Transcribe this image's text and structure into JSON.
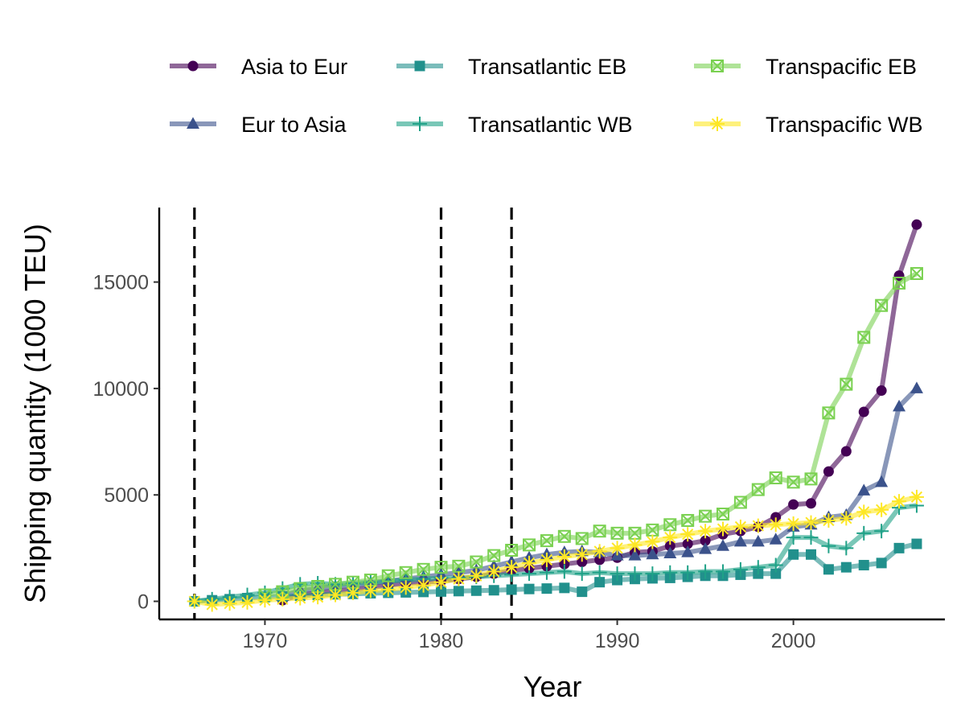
{
  "chart_data": {
    "type": "line",
    "title": "",
    "xlabel": "Year",
    "ylabel": "Shipping quantity (1000 TEU)",
    "xlim": [
      1964,
      2008.6
    ],
    "ylim": [
      -850,
      18500
    ],
    "xticks": [
      1970,
      1980,
      1990,
      2000
    ],
    "yticks": [
      0,
      5000,
      10000,
      15000
    ],
    "xtick_labels": [
      "1970",
      "1980",
      "1990",
      "2000"
    ],
    "ytick_labels": [
      "0",
      "5000",
      "10000",
      "15000"
    ],
    "vlines": [
      1966,
      1980,
      1984
    ],
    "grid": false,
    "legend_position": "top",
    "series": [
      {
        "name": "Asia to Eur",
        "color": "#440154",
        "marker": "circle",
        "x": [
          1971,
          1972,
          1973,
          1974,
          1975,
          1976,
          1977,
          1978,
          1979,
          1980,
          1981,
          1982,
          1983,
          1984,
          1985,
          1986,
          1987,
          1988,
          1989,
          1990,
          1991,
          1992,
          1993,
          1994,
          1995,
          1996,
          1997,
          1998,
          1999,
          2000,
          2001,
          2002,
          2003,
          2004,
          2005,
          2006,
          2007
        ],
        "values": [
          50,
          300,
          400,
          500,
          550,
          650,
          750,
          850,
          900,
          950,
          1050,
          1150,
          1300,
          1450,
          1550,
          1650,
          1750,
          1850,
          1950,
          2050,
          2300,
          2350,
          2600,
          2700,
          2850,
          3150,
          3300,
          3500,
          3950,
          4550,
          4600,
          6100,
          7050,
          8900,
          9900,
          15300,
          17700
        ]
      },
      {
        "name": "Eur to Asia",
        "color": "#3b528b",
        "marker": "triangle",
        "x": [
          1971,
          1972,
          1973,
          1974,
          1975,
          1976,
          1977,
          1978,
          1979,
          1980,
          1981,
          1982,
          1983,
          1984,
          1985,
          1986,
          1987,
          1988,
          1989,
          1990,
          1991,
          1992,
          1993,
          1994,
          1995,
          1996,
          1997,
          1998,
          1999,
          2000,
          2001,
          2002,
          2003,
          2004,
          2005,
          2006,
          2007
        ],
        "values": [
          250,
          500,
          600,
          700,
          750,
          850,
          950,
          1050,
          1150,
          1250,
          1350,
          1450,
          1650,
          1850,
          2050,
          2200,
          2300,
          2350,
          2300,
          2150,
          2150,
          2200,
          2250,
          2300,
          2450,
          2600,
          2800,
          2800,
          2900,
          3500,
          3600,
          3950,
          4050,
          5200,
          5600,
          9150,
          10000
        ]
      },
      {
        "name": "Transatlantic EB",
        "color": "#21908c",
        "marker": "square",
        "x": [
          1966,
          1967,
          1968,
          1969,
          1970,
          1971,
          1972,
          1973,
          1974,
          1975,
          1976,
          1977,
          1978,
          1979,
          1980,
          1981,
          1982,
          1983,
          1984,
          1985,
          1986,
          1987,
          1988,
          1989,
          1990,
          1991,
          1992,
          1993,
          1994,
          1995,
          1996,
          1997,
          1998,
          1999,
          2000,
          2001,
          2002,
          2003,
          2004,
          2005,
          2006,
          2007
        ],
        "values": [
          0,
          50,
          100,
          150,
          200,
          230,
          260,
          300,
          330,
          350,
          380,
          400,
          420,
          440,
          460,
          480,
          500,
          520,
          550,
          580,
          600,
          630,
          450,
          900,
          1000,
          1050,
          1080,
          1100,
          1150,
          1200,
          1200,
          1250,
          1300,
          1300,
          2200,
          2200,
          1500,
          1600,
          1700,
          1800,
          2500,
          2700
        ]
      },
      {
        "name": "Transatlantic WB",
        "color": "#1fa187",
        "marker": "plus",
        "x": [
          1966,
          1967,
          1968,
          1969,
          1970,
          1971,
          1972,
          1973,
          1974,
          1975,
          1976,
          1977,
          1978,
          1979,
          1980,
          1981,
          1982,
          1983,
          1984,
          1985,
          1986,
          1987,
          1988,
          1989,
          1990,
          1991,
          1992,
          1993,
          1994,
          1995,
          1996,
          1997,
          1998,
          1999,
          2000,
          2001,
          2002,
          2003,
          2004,
          2005,
          2006,
          2007
        ],
        "values": [
          0,
          100,
          200,
          300,
          400,
          600,
          800,
          850,
          800,
          850,
          900,
          950,
          1000,
          1050,
          1100,
          1100,
          1150,
          1200,
          1250,
          1300,
          1350,
          1400,
          1300,
          1350,
          1300,
          1300,
          1300,
          1350,
          1350,
          1400,
          1400,
          1500,
          1600,
          1700,
          3000,
          3000,
          2600,
          2500,
          3200,
          3300,
          4400,
          4500
        ]
      },
      {
        "name": "Transpacific EB",
        "color": "#7ad151",
        "marker": "square-x",
        "x": [
          1970,
          1971,
          1972,
          1973,
          1974,
          1975,
          1976,
          1977,
          1978,
          1979,
          1980,
          1981,
          1982,
          1983,
          1984,
          1985,
          1986,
          1987,
          1988,
          1989,
          1990,
          1991,
          1992,
          1993,
          1994,
          1995,
          1996,
          1997,
          1998,
          1999,
          2000,
          2001,
          2002,
          2003,
          2004,
          2005,
          2006,
          2007
        ],
        "values": [
          300,
          450,
          600,
          700,
          800,
          900,
          1000,
          1200,
          1350,
          1500,
          1600,
          1650,
          1850,
          2150,
          2400,
          2650,
          2850,
          3050,
          2950,
          3300,
          3200,
          3200,
          3350,
          3600,
          3800,
          4000,
          4100,
          4650,
          5250,
          5800,
          5600,
          5750,
          8850,
          10200,
          12400,
          13900,
          14950,
          15400
        ]
      },
      {
        "name": "Transpacific WB",
        "color": "#fde725",
        "marker": "asterisk",
        "x": [
          1966,
          1967,
          1968,
          1969,
          1970,
          1971,
          1972,
          1973,
          1974,
          1975,
          1976,
          1977,
          1978,
          1979,
          1980,
          1981,
          1982,
          1983,
          1984,
          1985,
          1986,
          1987,
          1988,
          1989,
          1990,
          1991,
          1992,
          1993,
          1994,
          1995,
          1996,
          1997,
          1998,
          1999,
          2000,
          2001,
          2002,
          2003,
          2004,
          2005,
          2006,
          2007
        ],
        "values": [
          0,
          -150,
          -100,
          -50,
          50,
          100,
          150,
          200,
          300,
          400,
          500,
          550,
          650,
          750,
          900,
          1050,
          1200,
          1400,
          1600,
          1800,
          1950,
          2100,
          2200,
          2350,
          2500,
          2650,
          2800,
          3000,
          3150,
          3300,
          3400,
          3500,
          3550,
          3600,
          3650,
          3700,
          3800,
          3900,
          4200,
          4300,
          4700,
          4900
        ]
      }
    ]
  }
}
